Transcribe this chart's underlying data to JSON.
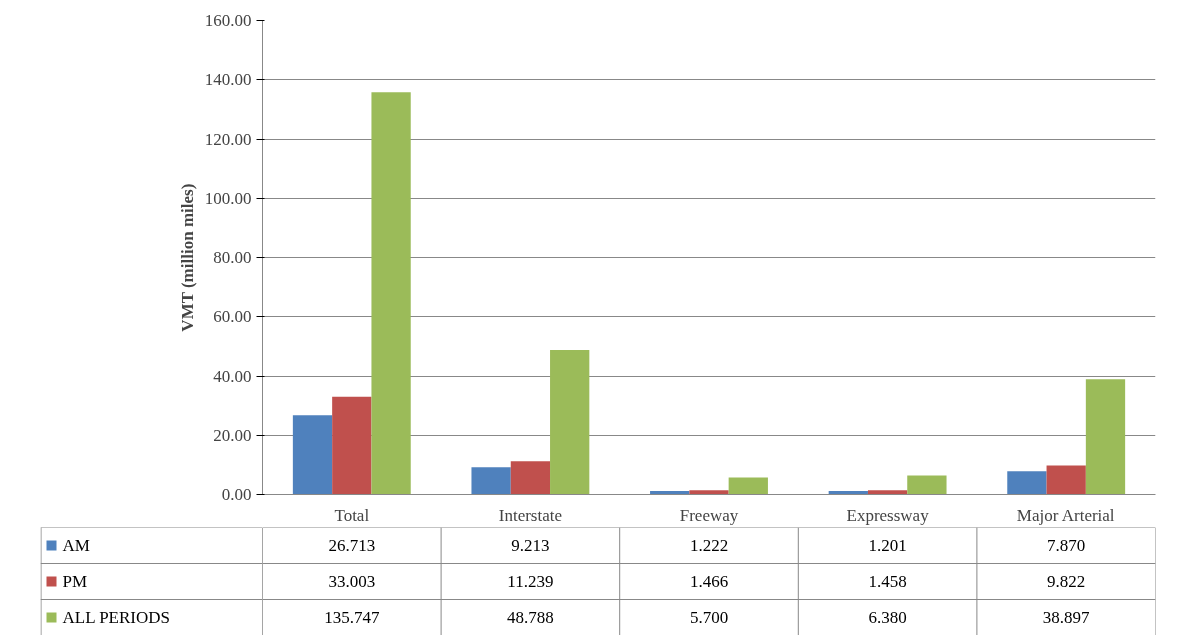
{
  "chart_data": {
    "type": "bar",
    "ylabel": "VMT (million miles)",
    "categories": [
      "Total",
      "Interstate",
      "Freeway",
      "Expressway",
      "Major Arterial"
    ],
    "series": [
      {
        "name": "AM",
        "color": "#4f81bd",
        "values": [
          26.713,
          9.213,
          1.222,
          1.201,
          7.87
        ],
        "value_labels": [
          "26.713",
          "9.213",
          "1.222",
          "1.201",
          "7.870"
        ]
      },
      {
        "name": "PM",
        "color": "#c0504d",
        "values": [
          33.003,
          11.239,
          1.466,
          1.458,
          9.822
        ],
        "value_labels": [
          "33.003",
          "11.239",
          "1.466",
          "1.458",
          "9.822"
        ]
      },
      {
        "name": "ALL PERIODS",
        "color": "#9bbb59",
        "values": [
          135.747,
          48.788,
          5.7,
          6.38,
          38.897
        ],
        "value_labels": [
          "135.747",
          "48.788",
          "5.700",
          "6.380",
          "38.897"
        ]
      }
    ],
    "ylim": [
      0,
      160
    ],
    "yticks": [
      {
        "value": 0,
        "label": "0.00"
      },
      {
        "value": 20,
        "label": "20.00"
      },
      {
        "value": 40,
        "label": "40.00"
      },
      {
        "value": 60,
        "label": "60.00"
      },
      {
        "value": 80,
        "label": "80.00"
      },
      {
        "value": 100,
        "label": "100.00"
      },
      {
        "value": 120,
        "label": "120.00"
      },
      {
        "value": 140,
        "label": "140.00"
      },
      {
        "value": 160,
        "label": "160.00"
      }
    ],
    "grid": "y",
    "legend": "bottom"
  }
}
